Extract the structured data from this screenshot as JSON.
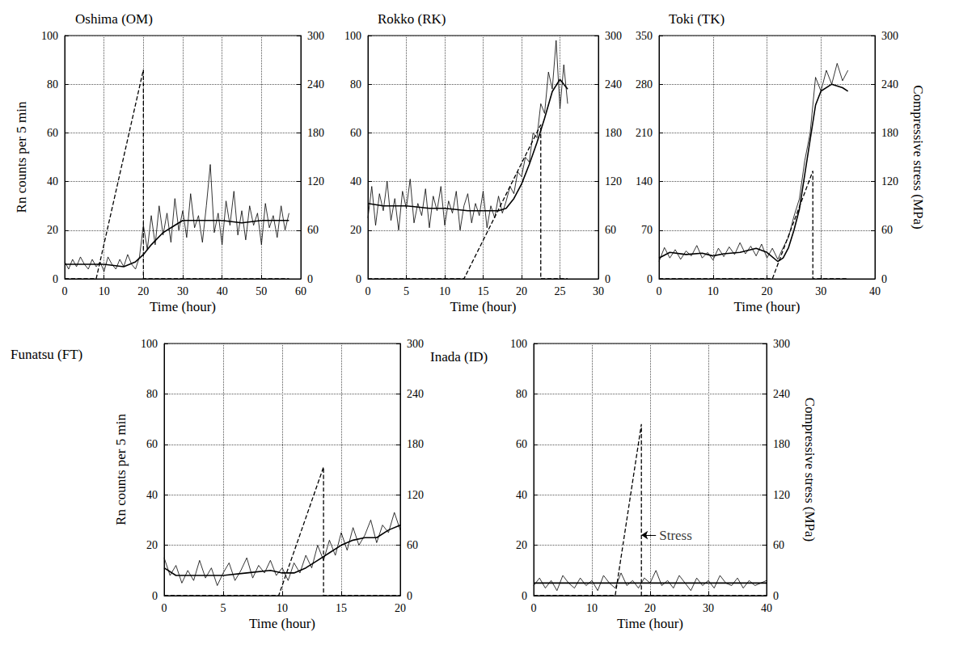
{
  "chart_data": [
    {
      "type": "line",
      "title": "Oshima (OM)",
      "x_label": "Time (hour)",
      "y_label": "Rn counts per 5 min",
      "xlim": [
        0,
        60
      ],
      "xticks": [
        0,
        10,
        20,
        30,
        40,
        50,
        60
      ],
      "ylim": [
        0,
        100
      ],
      "yticks": [
        0,
        20,
        40,
        60,
        80,
        100
      ],
      "y2lim": [
        0,
        300
      ],
      "y2ticks": [
        0,
        60,
        120,
        180,
        240,
        300
      ],
      "grid": true,
      "series": [
        {
          "color": "#000000",
          "line_style": "solid",
          "x": [
            0,
            1,
            2,
            3,
            4,
            5,
            6,
            7,
            8,
            9,
            10,
            11,
            12,
            13,
            14,
            15,
            16,
            17,
            18,
            19,
            20,
            21,
            22,
            23,
            24,
            25,
            26,
            27,
            28,
            29,
            30,
            31,
            32,
            33,
            34,
            35,
            36,
            37,
            38,
            39,
            40,
            41,
            42,
            43,
            44,
            45,
            46,
            47,
            48,
            49,
            50,
            51,
            52,
            53,
            54,
            55,
            56,
            57
          ],
          "values": [
            7,
            4,
            8,
            5,
            9,
            6,
            4,
            8,
            5,
            7,
            3,
            9,
            6,
            4,
            8,
            5,
            10,
            6,
            4,
            9,
            22,
            12,
            26,
            14,
            30,
            18,
            27,
            15,
            33,
            20,
            28,
            17,
            35,
            21,
            26,
            15,
            30,
            47,
            19,
            27,
            14,
            32,
            22,
            36,
            18,
            28,
            16,
            30,
            22,
            27,
            14,
            31,
            21,
            26,
            17,
            30,
            20,
            27
          ]
        },
        {
          "color": "#000000",
          "line_style": "solid",
          "x": [
            0,
            5,
            10,
            15,
            18,
            20,
            22,
            25,
            28,
            30,
            35,
            40,
            45,
            50,
            55,
            57
          ],
          "values": [
            6,
            6,
            6,
            5,
            7,
            10,
            14,
            19,
            22,
            24,
            24,
            24,
            23,
            24,
            24,
            24
          ]
        },
        {
          "color": "#000000",
          "line_style": "dashed",
          "axis": "y2",
          "x": [
            0,
            8,
            20,
            20,
            57
          ],
          "values": [
            0,
            0,
            258,
            0,
            0
          ]
        }
      ]
    },
    {
      "type": "line",
      "title": "Rokko (RK)",
      "x_label": "Time (hour)",
      "xlim": [
        0,
        30
      ],
      "xticks": [
        0,
        5,
        10,
        15,
        20,
        25,
        30
      ],
      "ylim": [
        0,
        100
      ],
      "yticks": [
        0,
        20,
        40,
        60,
        80,
        100
      ],
      "y2lim": [
        0,
        300
      ],
      "y2ticks": [
        0,
        60,
        120,
        180,
        240,
        300
      ],
      "grid": true,
      "series": [
        {
          "color": "#000000",
          "line_style": "solid",
          "x": [
            0,
            0.5,
            1,
            1.5,
            2,
            2.5,
            3,
            3.5,
            4,
            4.5,
            5,
            5.5,
            6,
            6.5,
            7,
            7.5,
            8,
            8.5,
            9,
            9.5,
            10,
            10.5,
            11,
            11.5,
            12,
            12.5,
            13,
            13.5,
            14,
            14.5,
            15,
            15.5,
            16,
            16.5,
            17,
            17.5,
            18,
            18.5,
            19,
            19.5,
            20,
            20.5,
            21,
            21.5,
            22,
            22.5,
            23,
            23.5,
            24,
            24.5,
            25,
            25.5,
            26
          ],
          "values": [
            25,
            38,
            22,
            35,
            28,
            40,
            24,
            33,
            20,
            36,
            29,
            41,
            23,
            31,
            26,
            37,
            21,
            34,
            28,
            38,
            22,
            32,
            27,
            36,
            20,
            30,
            35,
            23,
            31,
            26,
            36,
            21,
            30,
            25,
            34,
            27,
            32,
            38,
            35,
            44,
            42,
            50,
            48,
            60,
            58,
            72,
            68,
            85,
            78,
            98,
            70,
            88,
            72
          ]
        },
        {
          "color": "#000000",
          "line_style": "solid",
          "x": [
            0,
            2,
            5,
            8,
            10,
            13,
            15,
            17,
            18,
            19,
            20,
            21,
            22,
            23,
            24,
            25,
            26
          ],
          "values": [
            31,
            30,
            30,
            29,
            29,
            28,
            28,
            28,
            29,
            33,
            39,
            47,
            56,
            66,
            77,
            82,
            78
          ]
        },
        {
          "color": "#000000",
          "line_style": "dashed",
          "axis": "y2",
          "x": [
            0,
            12.5,
            22.5,
            22.5,
            26
          ],
          "values": [
            0,
            0,
            190,
            0,
            0
          ]
        }
      ]
    },
    {
      "type": "line",
      "title": "Toki (TK)",
      "x_label": "Time (hour)",
      "y2_label": "Compressive stress (MPa)",
      "xlim": [
        0,
        40
      ],
      "xticks": [
        0,
        10,
        20,
        30,
        40
      ],
      "ylim": [
        0,
        350
      ],
      "yticks": [
        0,
        70,
        140,
        210,
        280,
        350
      ],
      "y2lim": [
        0,
        300
      ],
      "y2ticks": [
        0,
        60,
        120,
        180,
        240,
        300
      ],
      "grid": true,
      "series": [
        {
          "color": "#000000",
          "line_style": "solid",
          "x": [
            0,
            1,
            2,
            3,
            4,
            5,
            6,
            7,
            8,
            9,
            10,
            11,
            12,
            13,
            14,
            15,
            16,
            17,
            18,
            19,
            20,
            21,
            22,
            23,
            24,
            25,
            26,
            27,
            28,
            29,
            30,
            31,
            32,
            33,
            34,
            35
          ],
          "values": [
            25,
            45,
            30,
            42,
            28,
            40,
            33,
            48,
            30,
            38,
            27,
            44,
            32,
            46,
            35,
            52,
            36,
            47,
            33,
            50,
            30,
            44,
            28,
            45,
            60,
            90,
            115,
            170,
            210,
            290,
            270,
            300,
            280,
            310,
            285,
            300
          ]
        },
        {
          "color": "#000000",
          "line_style": "solid",
          "x": [
            0,
            2,
            5,
            8,
            10,
            12,
            15,
            18,
            20,
            22,
            23,
            24,
            25,
            26,
            27,
            28,
            29,
            30,
            32,
            34,
            35
          ],
          "values": [
            30,
            38,
            35,
            37,
            33,
            36,
            38,
            44,
            38,
            25,
            30,
            45,
            70,
            100,
            150,
            200,
            250,
            270,
            280,
            275,
            270
          ]
        },
        {
          "color": "#000000",
          "line_style": "dashed",
          "axis": "y2",
          "x": [
            0,
            21,
            28.5,
            28.5,
            35
          ],
          "values": [
            0,
            0,
            133,
            0,
            0
          ]
        }
      ]
    },
    {
      "type": "line",
      "title": "Funatsu (FT)",
      "x_label": "Time (hour)",
      "y_label": "Rn counts per 5 min",
      "xlim": [
        0,
        20
      ],
      "xticks": [
        0,
        5,
        10,
        15,
        20
      ],
      "ylim": [
        0,
        100
      ],
      "yticks": [
        0,
        20,
        40,
        60,
        80,
        100
      ],
      "y2lim": [
        0,
        300
      ],
      "y2ticks": [
        0,
        60,
        120,
        180,
        240,
        300
      ],
      "grid": true,
      "series": [
        {
          "color": "#000000",
          "line_style": "solid",
          "x": [
            0,
            0.5,
            1,
            1.5,
            2,
            2.5,
            3,
            3.5,
            4,
            4.5,
            5,
            5.5,
            6,
            6.5,
            7,
            7.5,
            8,
            8.5,
            9,
            9.5,
            10,
            10.5,
            11,
            11.5,
            12,
            12.5,
            13,
            13.5,
            14,
            14.5,
            15,
            15.5,
            16,
            16.5,
            17,
            17.5,
            18,
            18.5,
            19,
            19.5,
            20
          ],
          "values": [
            15,
            8,
            12,
            5,
            10,
            6,
            14,
            7,
            11,
            4,
            9,
            13,
            6,
            10,
            15,
            7,
            12,
            9,
            14,
            8,
            11,
            6,
            13,
            9,
            16,
            11,
            20,
            14,
            22,
            16,
            25,
            18,
            27,
            20,
            24,
            30,
            21,
            28,
            25,
            33,
            26
          ]
        },
        {
          "color": "#000000",
          "line_style": "solid",
          "x": [
            0,
            1,
            3,
            5,
            7,
            9,
            10,
            11,
            12,
            13,
            14,
            15,
            16,
            17,
            18,
            19,
            20
          ],
          "values": [
            11,
            8,
            8,
            8,
            9,
            10,
            9,
            9,
            11,
            14,
            17,
            20,
            22,
            23,
            23,
            26,
            28
          ]
        },
        {
          "color": "#000000",
          "line_style": "dashed",
          "axis": "y2",
          "x": [
            0,
            9.7,
            13.5,
            13.5,
            20
          ],
          "values": [
            0,
            0,
            153,
            0,
            0
          ]
        }
      ]
    },
    {
      "type": "line",
      "title": "Inada (ID)",
      "x_label": "Time (hour)",
      "y2_label": "Compressive stress (MPa)",
      "xlim": [
        0,
        40
      ],
      "xticks": [
        0,
        10,
        20,
        30,
        40
      ],
      "ylim": [
        0,
        100
      ],
      "yticks": [
        0,
        20,
        40,
        60,
        80,
        100
      ],
      "y2lim": [
        0,
        300
      ],
      "y2ticks": [
        0,
        60,
        120,
        180,
        240,
        300
      ],
      "grid": true,
      "annotations": [
        {
          "text": "Stress",
          "x": 21,
          "y": 24
        }
      ],
      "series": [
        {
          "color": "#000000",
          "line_style": "solid",
          "x": [
            0,
            1,
            2,
            3,
            4,
            5,
            6,
            7,
            8,
            9,
            10,
            11,
            12,
            13,
            14,
            15,
            16,
            17,
            18,
            19,
            20,
            21,
            22,
            23,
            24,
            25,
            26,
            27,
            28,
            29,
            30,
            31,
            32,
            33,
            34,
            35,
            36,
            37,
            38,
            39,
            40
          ],
          "values": [
            4,
            7,
            3,
            6,
            2,
            8,
            5,
            3,
            7,
            4,
            6,
            2,
            8,
            5,
            3,
            9,
            4,
            6,
            3,
            7,
            5,
            10,
            4,
            6,
            3,
            8,
            5,
            2,
            7,
            4,
            6,
            3,
            8,
            5,
            4,
            7,
            3,
            6,
            4,
            5,
            6
          ]
        },
        {
          "color": "#000000",
          "line_style": "solid",
          "x": [
            0,
            10,
            20,
            30,
            40
          ],
          "values": [
            5,
            5,
            5,
            5,
            5
          ]
        },
        {
          "color": "#000000",
          "line_style": "dashed",
          "axis": "y2",
          "x": [
            0,
            14,
            18.5,
            18.5,
            40
          ],
          "values": [
            0,
            0,
            204,
            0,
            0
          ]
        }
      ]
    }
  ]
}
